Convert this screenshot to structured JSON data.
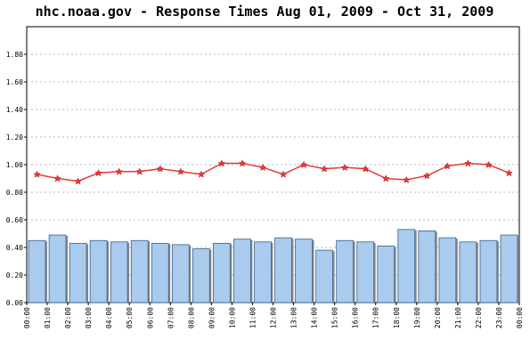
{
  "chart_data": {
    "type": "bar",
    "title": "nhc.noaa.gov - Response Times Aug 01, 2009 - Oct 31, 2009",
    "xlabel": "",
    "ylabel": "",
    "ylim": [
      0,
      2.0
    ],
    "yticks": [
      "0.00",
      "0.20",
      "0.40",
      "0.60",
      "0.80",
      "1.00",
      "1.20",
      "1.40",
      "1.60",
      "1.80"
    ],
    "categories": [
      "00:00",
      "01:00",
      "02:00",
      "03:00",
      "04:00",
      "05:00",
      "06:00",
      "07:00",
      "08:00",
      "09:00",
      "10:00",
      "11:00",
      "12:00",
      "13:00",
      "14:00",
      "15:00",
      "16:00",
      "17:00",
      "18:00",
      "19:00",
      "20:00",
      "21:00",
      "22:00",
      "23:00"
    ],
    "x_end_label": "00:00",
    "grid": true,
    "series": [
      {
        "kind": "bar",
        "color": "#a9cbee",
        "values": [
          0.45,
          0.49,
          0.43,
          0.45,
          0.44,
          0.45,
          0.43,
          0.42,
          0.39,
          0.43,
          0.46,
          0.44,
          0.47,
          0.46,
          0.38,
          0.45,
          0.44,
          0.41,
          0.53,
          0.52,
          0.47,
          0.44,
          0.45,
          0.49
        ]
      },
      {
        "kind": "line",
        "color": "#e8393a",
        "values": [
          0.93,
          0.9,
          0.88,
          0.94,
          0.95,
          0.95,
          0.97,
          0.95,
          0.93,
          1.01,
          1.01,
          0.98,
          0.93,
          1.0,
          0.97,
          0.98,
          0.97,
          0.9,
          0.89,
          0.92,
          0.99,
          1.01,
          1.0,
          0.94
        ]
      }
    ]
  }
}
